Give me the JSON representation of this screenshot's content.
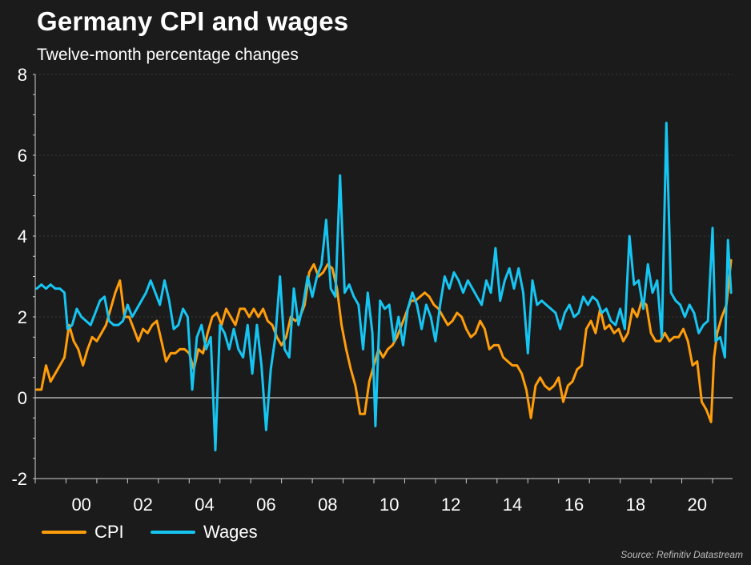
{
  "title": "Germany CPI and wages",
  "subtitle": "Twelve-month percentage changes",
  "source": "Source: Refinitiv Datastream",
  "colors": {
    "background": "#1b1b1b",
    "cpi": "#ff9d0a",
    "wages": "#16c5f2",
    "grid": "#3a3a3a",
    "zero_line": "#cfcfcf"
  },
  "chart_data": {
    "type": "line",
    "ylim": [
      -2,
      8
    ],
    "xlim": [
      1999.0,
      2021.65
    ],
    "yticks": [
      -2,
      0,
      2,
      4,
      6,
      8
    ],
    "ytick_labels": [
      "-2",
      "0",
      "2",
      "4",
      "6",
      "8"
    ],
    "xticks": [
      2000,
      2002,
      2004,
      2006,
      2008,
      2010,
      2012,
      2014,
      2016,
      2018,
      2020
    ],
    "xtick_labels": [
      "00",
      "02",
      "04",
      "06",
      "08",
      "10",
      "12",
      "14",
      "16",
      "18",
      "20"
    ],
    "grid": "horizontal",
    "legend_position": "bottom-left",
    "series": [
      {
        "name": "CPI",
        "color": "#ff9d0a",
        "points": [
          [
            1999.05,
            0.2
          ],
          [
            1999.2,
            0.2
          ],
          [
            1999.35,
            0.8
          ],
          [
            1999.5,
            0.4
          ],
          [
            1999.65,
            0.6
          ],
          [
            1999.8,
            0.8
          ],
          [
            1999.95,
            1.0
          ],
          [
            2000.1,
            1.8
          ],
          [
            2000.25,
            1.4
          ],
          [
            2000.4,
            1.2
          ],
          [
            2000.55,
            0.8
          ],
          [
            2000.7,
            1.2
          ],
          [
            2000.85,
            1.5
          ],
          [
            2001.0,
            1.4
          ],
          [
            2001.15,
            1.6
          ],
          [
            2001.3,
            1.8
          ],
          [
            2001.45,
            2.2
          ],
          [
            2001.6,
            2.6
          ],
          [
            2001.75,
            2.9
          ],
          [
            2001.9,
            2.0
          ],
          [
            2002.05,
            2.0
          ],
          [
            2002.2,
            1.7
          ],
          [
            2002.35,
            1.4
          ],
          [
            2002.5,
            1.7
          ],
          [
            2002.65,
            1.6
          ],
          [
            2002.8,
            1.8
          ],
          [
            2002.95,
            1.9
          ],
          [
            2003.1,
            1.4
          ],
          [
            2003.25,
            0.9
          ],
          [
            2003.4,
            1.1
          ],
          [
            2003.55,
            1.1
          ],
          [
            2003.7,
            1.2
          ],
          [
            2003.85,
            1.2
          ],
          [
            2004.0,
            1.1
          ],
          [
            2004.15,
            0.7
          ],
          [
            2004.3,
            1.2
          ],
          [
            2004.45,
            1.1
          ],
          [
            2004.6,
            1.6
          ],
          [
            2004.75,
            2.0
          ],
          [
            2004.9,
            2.1
          ],
          [
            2005.05,
            1.8
          ],
          [
            2005.2,
            2.2
          ],
          [
            2005.35,
            2.0
          ],
          [
            2005.5,
            1.8
          ],
          [
            2005.65,
            2.2
          ],
          [
            2005.8,
            2.2
          ],
          [
            2005.95,
            2.0
          ],
          [
            2006.1,
            2.2
          ],
          [
            2006.25,
            2.0
          ],
          [
            2006.4,
            2.2
          ],
          [
            2006.55,
            1.9
          ],
          [
            2006.7,
            1.8
          ],
          [
            2006.85,
            1.5
          ],
          [
            2007.0,
            1.3
          ],
          [
            2007.15,
            1.5
          ],
          [
            2007.3,
            2.0
          ],
          [
            2007.45,
            1.9
          ],
          [
            2007.6,
            2.0
          ],
          [
            2007.75,
            2.3
          ],
          [
            2007.9,
            3.1
          ],
          [
            2008.05,
            3.3
          ],
          [
            2008.2,
            3.0
          ],
          [
            2008.35,
            3.1
          ],
          [
            2008.5,
            3.3
          ],
          [
            2008.65,
            3.2
          ],
          [
            2008.8,
            2.7
          ],
          [
            2008.95,
            1.8
          ],
          [
            2009.1,
            1.2
          ],
          [
            2009.25,
            0.7
          ],
          [
            2009.4,
            0.3
          ],
          [
            2009.55,
            -0.4
          ],
          [
            2009.7,
            -0.4
          ],
          [
            2009.85,
            0.4
          ],
          [
            2010.0,
            0.8
          ],
          [
            2010.15,
            1.2
          ],
          [
            2010.3,
            1.0
          ],
          [
            2010.45,
            1.2
          ],
          [
            2010.6,
            1.3
          ],
          [
            2010.75,
            1.5
          ],
          [
            2010.9,
            1.8
          ],
          [
            2011.05,
            2.1
          ],
          [
            2011.2,
            2.4
          ],
          [
            2011.35,
            2.4
          ],
          [
            2011.5,
            2.5
          ],
          [
            2011.65,
            2.6
          ],
          [
            2011.8,
            2.5
          ],
          [
            2011.95,
            2.3
          ],
          [
            2012.1,
            2.2
          ],
          [
            2012.25,
            2.0
          ],
          [
            2012.4,
            1.8
          ],
          [
            2012.55,
            1.9
          ],
          [
            2012.7,
            2.1
          ],
          [
            2012.85,
            2.0
          ],
          [
            2013.0,
            1.7
          ],
          [
            2013.15,
            1.5
          ],
          [
            2013.3,
            1.6
          ],
          [
            2013.45,
            1.9
          ],
          [
            2013.6,
            1.7
          ],
          [
            2013.75,
            1.2
          ],
          [
            2013.9,
            1.3
          ],
          [
            2014.05,
            1.3
          ],
          [
            2014.2,
            1.0
          ],
          [
            2014.35,
            0.9
          ],
          [
            2014.5,
            0.8
          ],
          [
            2014.65,
            0.8
          ],
          [
            2014.8,
            0.6
          ],
          [
            2014.95,
            0.2
          ],
          [
            2015.1,
            -0.5
          ],
          [
            2015.25,
            0.3
          ],
          [
            2015.4,
            0.5
          ],
          [
            2015.55,
            0.3
          ],
          [
            2015.7,
            0.2
          ],
          [
            2015.85,
            0.3
          ],
          [
            2016.0,
            0.5
          ],
          [
            2016.15,
            -0.1
          ],
          [
            2016.3,
            0.3
          ],
          [
            2016.45,
            0.4
          ],
          [
            2016.6,
            0.7
          ],
          [
            2016.75,
            0.8
          ],
          [
            2016.9,
            1.7
          ],
          [
            2017.05,
            1.9
          ],
          [
            2017.2,
            1.6
          ],
          [
            2017.35,
            2.2
          ],
          [
            2017.5,
            1.7
          ],
          [
            2017.65,
            1.8
          ],
          [
            2017.8,
            1.6
          ],
          [
            2017.95,
            1.7
          ],
          [
            2018.1,
            1.4
          ],
          [
            2018.25,
            1.6
          ],
          [
            2018.4,
            2.2
          ],
          [
            2018.55,
            2.0
          ],
          [
            2018.7,
            2.4
          ],
          [
            2018.85,
            2.3
          ],
          [
            2019.0,
            1.6
          ],
          [
            2019.15,
            1.4
          ],
          [
            2019.3,
            1.4
          ],
          [
            2019.45,
            1.6
          ],
          [
            2019.6,
            1.4
          ],
          [
            2019.75,
            1.5
          ],
          [
            2019.9,
            1.5
          ],
          [
            2020.05,
            1.7
          ],
          [
            2020.2,
            1.4
          ],
          [
            2020.35,
            0.8
          ],
          [
            2020.5,
            0.9
          ],
          [
            2020.65,
            -0.1
          ],
          [
            2020.8,
            -0.3
          ],
          [
            2020.95,
            -0.6
          ],
          [
            2021.05,
            1.0
          ],
          [
            2021.15,
            1.6
          ],
          [
            2021.3,
            2.0
          ],
          [
            2021.45,
            2.3
          ],
          [
            2021.6,
            3.4
          ]
        ]
      },
      {
        "name": "Wages",
        "color": "#16c5f2",
        "points": [
          [
            1999.05,
            2.7
          ],
          [
            1999.2,
            2.8
          ],
          [
            1999.35,
            2.7
          ],
          [
            1999.5,
            2.8
          ],
          [
            1999.65,
            2.7
          ],
          [
            1999.8,
            2.7
          ],
          [
            1999.95,
            2.6
          ],
          [
            2000.05,
            1.7
          ],
          [
            2000.2,
            1.8
          ],
          [
            2000.35,
            2.2
          ],
          [
            2000.5,
            2.0
          ],
          [
            2000.65,
            1.9
          ],
          [
            2000.8,
            1.8
          ],
          [
            2000.95,
            2.1
          ],
          [
            2001.1,
            2.4
          ],
          [
            2001.25,
            2.5
          ],
          [
            2001.4,
            1.9
          ],
          [
            2001.55,
            1.8
          ],
          [
            2001.7,
            1.8
          ],
          [
            2001.85,
            1.9
          ],
          [
            2002.0,
            2.3
          ],
          [
            2002.15,
            2.0
          ],
          [
            2002.3,
            2.2
          ],
          [
            2002.45,
            2.4
          ],
          [
            2002.6,
            2.6
          ],
          [
            2002.75,
            2.9
          ],
          [
            2002.9,
            2.6
          ],
          [
            2003.05,
            2.3
          ],
          [
            2003.2,
            2.9
          ],
          [
            2003.35,
            2.4
          ],
          [
            2003.5,
            1.7
          ],
          [
            2003.65,
            1.8
          ],
          [
            2003.8,
            2.2
          ],
          [
            2003.95,
            2.0
          ],
          [
            2004.1,
            0.2
          ],
          [
            2004.25,
            1.5
          ],
          [
            2004.4,
            1.8
          ],
          [
            2004.55,
            1.2
          ],
          [
            2004.7,
            1.5
          ],
          [
            2004.85,
            -1.3
          ],
          [
            2005.0,
            1.8
          ],
          [
            2005.15,
            1.6
          ],
          [
            2005.3,
            1.2
          ],
          [
            2005.45,
            1.7
          ],
          [
            2005.6,
            1.2
          ],
          [
            2005.75,
            1.0
          ],
          [
            2005.9,
            1.8
          ],
          [
            2006.05,
            0.6
          ],
          [
            2006.2,
            1.8
          ],
          [
            2006.35,
            0.8
          ],
          [
            2006.5,
            -0.8
          ],
          [
            2006.65,
            0.7
          ],
          [
            2006.8,
            1.5
          ],
          [
            2006.95,
            3.0
          ],
          [
            2007.1,
            1.2
          ],
          [
            2007.25,
            1.0
          ],
          [
            2007.4,
            2.7
          ],
          [
            2007.55,
            1.8
          ],
          [
            2007.7,
            2.3
          ],
          [
            2007.85,
            3.0
          ],
          [
            2008.0,
            2.5
          ],
          [
            2008.15,
            3.0
          ],
          [
            2008.3,
            3.3
          ],
          [
            2008.45,
            4.4
          ],
          [
            2008.6,
            2.7
          ],
          [
            2008.75,
            2.5
          ],
          [
            2008.9,
            5.5
          ],
          [
            2009.05,
            2.6
          ],
          [
            2009.2,
            2.8
          ],
          [
            2009.35,
            2.5
          ],
          [
            2009.5,
            2.3
          ],
          [
            2009.65,
            1.2
          ],
          [
            2009.8,
            2.6
          ],
          [
            2009.95,
            1.6
          ],
          [
            2010.05,
            -0.7
          ],
          [
            2010.2,
            2.4
          ],
          [
            2010.35,
            2.2
          ],
          [
            2010.5,
            2.3
          ],
          [
            2010.65,
            1.4
          ],
          [
            2010.8,
            2.0
          ],
          [
            2010.95,
            1.3
          ],
          [
            2011.1,
            2.2
          ],
          [
            2011.25,
            2.6
          ],
          [
            2011.4,
            2.3
          ],
          [
            2011.55,
            1.7
          ],
          [
            2011.7,
            2.3
          ],
          [
            2011.85,
            2.0
          ],
          [
            2012.0,
            1.4
          ],
          [
            2012.15,
            2.3
          ],
          [
            2012.3,
            3.0
          ],
          [
            2012.45,
            2.7
          ],
          [
            2012.6,
            3.1
          ],
          [
            2012.75,
            2.9
          ],
          [
            2012.9,
            2.6
          ],
          [
            2013.05,
            2.9
          ],
          [
            2013.2,
            2.7
          ],
          [
            2013.35,
            2.5
          ],
          [
            2013.5,
            2.3
          ],
          [
            2013.65,
            2.9
          ],
          [
            2013.8,
            2.6
          ],
          [
            2013.95,
            3.7
          ],
          [
            2014.1,
            2.4
          ],
          [
            2014.25,
            2.9
          ],
          [
            2014.4,
            3.2
          ],
          [
            2014.55,
            2.7
          ],
          [
            2014.7,
            3.2
          ],
          [
            2014.85,
            2.6
          ],
          [
            2015.0,
            1.1
          ],
          [
            2015.15,
            2.9
          ],
          [
            2015.3,
            2.3
          ],
          [
            2015.45,
            2.4
          ],
          [
            2015.6,
            2.3
          ],
          [
            2015.75,
            2.2
          ],
          [
            2015.9,
            2.1
          ],
          [
            2016.05,
            1.7
          ],
          [
            2016.2,
            2.1
          ],
          [
            2016.35,
            2.3
          ],
          [
            2016.5,
            2.0
          ],
          [
            2016.65,
            2.1
          ],
          [
            2016.8,
            2.5
          ],
          [
            2016.95,
            2.3
          ],
          [
            2017.1,
            2.5
          ],
          [
            2017.25,
            2.4
          ],
          [
            2017.4,
            2.1
          ],
          [
            2017.55,
            2.2
          ],
          [
            2017.7,
            1.9
          ],
          [
            2017.85,
            1.8
          ],
          [
            2018.0,
            2.2
          ],
          [
            2018.15,
            1.7
          ],
          [
            2018.3,
            4.0
          ],
          [
            2018.45,
            2.8
          ],
          [
            2018.6,
            2.9
          ],
          [
            2018.75,
            2.2
          ],
          [
            2018.9,
            3.3
          ],
          [
            2019.05,
            2.6
          ],
          [
            2019.2,
            2.9
          ],
          [
            2019.35,
            1.5
          ],
          [
            2019.5,
            6.8
          ],
          [
            2019.65,
            2.6
          ],
          [
            2019.8,
            2.4
          ],
          [
            2019.95,
            2.3
          ],
          [
            2020.1,
            2.0
          ],
          [
            2020.25,
            2.3
          ],
          [
            2020.4,
            2.1
          ],
          [
            2020.55,
            1.6
          ],
          [
            2020.7,
            1.8
          ],
          [
            2020.85,
            1.9
          ],
          [
            2021.0,
            4.2
          ],
          [
            2021.1,
            1.4
          ],
          [
            2021.25,
            1.5
          ],
          [
            2021.4,
            1.0
          ],
          [
            2021.5,
            3.9
          ],
          [
            2021.6,
            2.6
          ]
        ]
      }
    ]
  }
}
